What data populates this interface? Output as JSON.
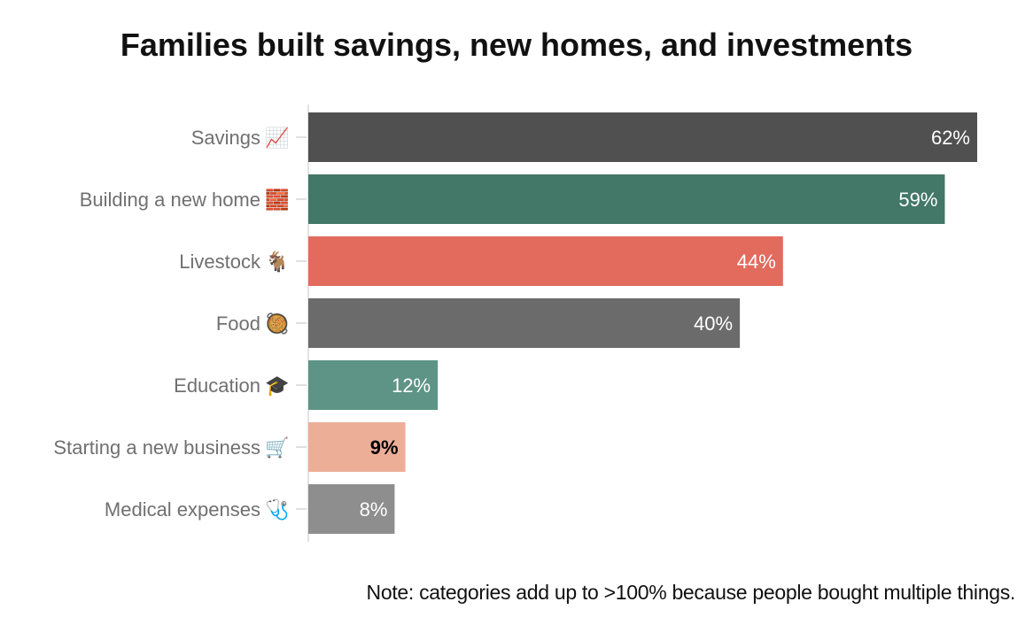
{
  "chart_data": {
    "type": "bar",
    "orientation": "horizontal",
    "title": "Families built savings, new homes, and investments",
    "categories": [
      "Savings",
      "Building a new home",
      "Livestock",
      "Food",
      "Education",
      "Starting a new business",
      "Medical expenses"
    ],
    "icons": [
      "chart-increasing-icon",
      "bricks-icon",
      "goat-icon",
      "food-pan-icon",
      "graduation-cap-icon",
      "shopping-cart-icon",
      "stethoscope-icon"
    ],
    "icon_glyphs": [
      "📈",
      "🧱",
      "🐐",
      "🥘",
      "🎓",
      "🛒",
      "🩺"
    ],
    "values": [
      62,
      59,
      44,
      40,
      12,
      9,
      8
    ],
    "value_labels": [
      "62%",
      "59%",
      "44%",
      "40%",
      "12%",
      "9%",
      "8%"
    ],
    "colors": [
      "#505050",
      "#437767",
      "#e26b5e",
      "#6b6b6b",
      "#5e9485",
      "#edae98",
      "#8e8e8e"
    ],
    "label_colors": [
      "#ffffff",
      "#ffffff",
      "#ffffff",
      "#ffffff",
      "#ffffff",
      "#000000",
      "#ffffff"
    ],
    "xlim": [
      0,
      62
    ],
    "grid": false,
    "legend": "none"
  },
  "note": "Note: categories add up to >100% because people bought multiple things."
}
